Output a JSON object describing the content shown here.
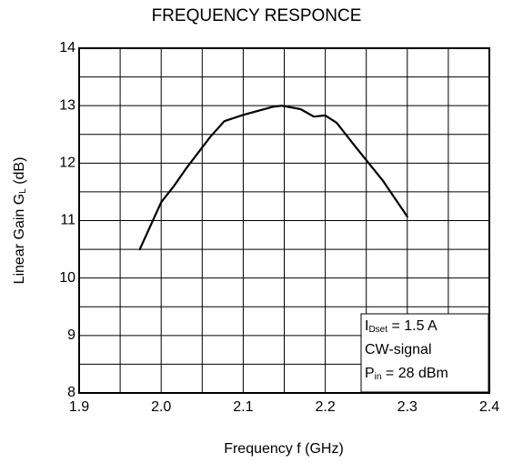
{
  "chart_data": {
    "type": "line",
    "title": "FREQUENCY RESPONCE",
    "x_label": "Frequency  f (GHz)",
    "y_label": {
      "main": "Linear Gain  G",
      "sub": "L",
      "tail": " (dB)"
    },
    "x": [
      1.974,
      2.0,
      2.015,
      2.03,
      2.06,
      2.077,
      2.1,
      2.136,
      2.147,
      2.17,
      2.186,
      2.2,
      2.214,
      2.236,
      2.27,
      2.3
    ],
    "values": [
      10.5,
      11.32,
      11.59,
      11.9,
      12.46,
      12.73,
      12.84,
      12.98,
      13.0,
      12.94,
      12.81,
      12.83,
      12.7,
      12.3,
      11.7,
      11.07
    ],
    "color": "#000000",
    "xlim": [
      1.9,
      2.4
    ],
    "xticks": [
      1.9,
      {
        "value": 2,
        "label": "2.0"
      },
      2.1,
      2.2,
      2.3,
      2.4
    ],
    "ylim": [
      8,
      14
    ],
    "yticks": [
      8,
      9,
      10,
      11,
      12,
      13,
      14
    ],
    "grid": true,
    "annotations": [
      {
        "main": "I",
        "sub": "Dset",
        "tail": " = 1.5 A"
      },
      {
        "main": "CW-signal"
      },
      {
        "main": "P",
        "sub": "in",
        "tail": " = 28 dBm"
      }
    ]
  }
}
